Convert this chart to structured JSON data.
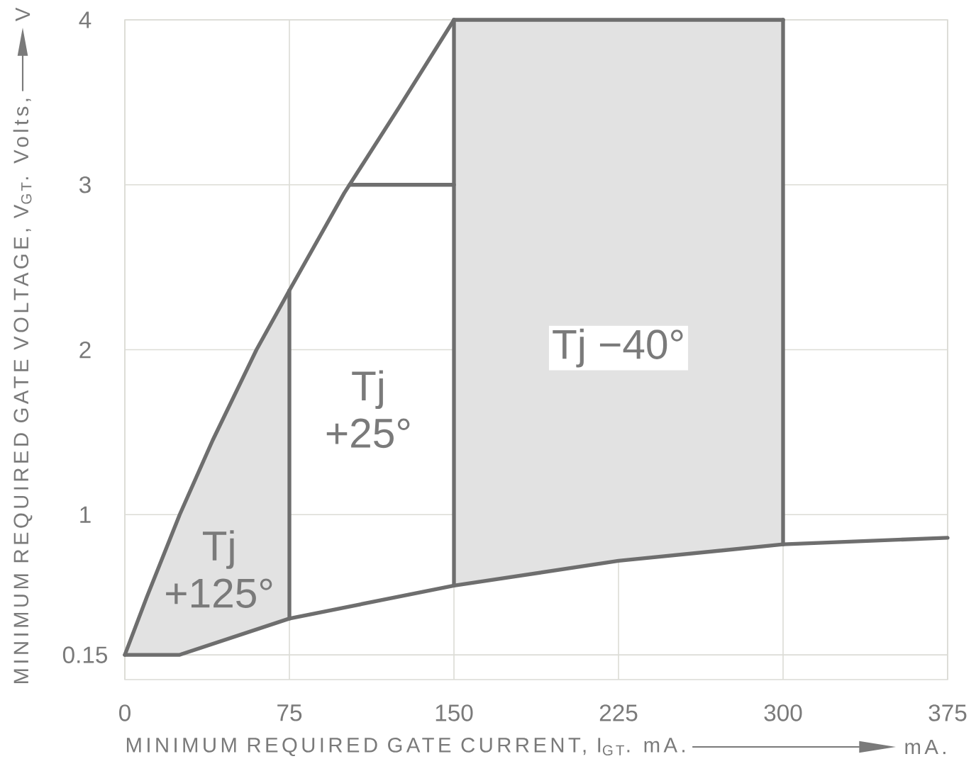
{
  "chart_data": {
    "type": "line",
    "xlabel": "MINIMUM REQUIRED GATE CURRENT, I$_{GT}$. mA.",
    "ylabel": "MINIMUM REQUIRED GATE VOLTAGE, V$_{GT}$. Volts,",
    "annotations": [
      "mA.",
      "V",
      "Tj +125°",
      "Tj +25°",
      "Tj −40°"
    ],
    "xlim": [
      0,
      375
    ],
    "xticks": [
      0,
      75,
      150,
      225,
      300,
      375
    ],
    "ylim": [
      0,
      4
    ],
    "yticks": [
      0.15,
      1,
      2,
      3,
      4
    ],
    "grid": true,
    "series": [
      {
        "color": "#6e6e6e",
        "x": [
          0,
          10,
          25,
          40,
          60,
          75,
          100,
          125,
          150
        ],
        "values": [
          0.15,
          0.5,
          1.0,
          1.45,
          2.0,
          2.36,
          2.95,
          3.47,
          4.0
        ],
        "lower": [
          0.15,
          0.15,
          0.15,
          0.22,
          0.3,
          0.37,
          null,
          null,
          null
        ],
        "upper": [
          0.15,
          0.5,
          1.0,
          1.45,
          2.0,
          2.36,
          null,
          null,
          null
        ]
      },
      {
        "color": "#6e6e6e",
        "x": [
          0,
          25,
          75,
          150,
          225,
          300,
          375
        ],
        "values": [
          0.15,
          0.15,
          0.37,
          0.57,
          0.72,
          0.82,
          0.86
        ]
      },
      {
        "color": "#6e6e6e",
        "x": [
          150,
          225,
          300
        ],
        "values": [
          4,
          4,
          4
        ],
        "lower": [
          0.57,
          0.72,
          0.82
        ],
        "upper": [
          4,
          4,
          4
        ]
      },
      {
        "color": "#6e6e6e",
        "x": [
          75,
          75
        ],
        "values": [
          0.37,
          2.36
        ]
      },
      {
        "color": "#6e6e6e",
        "x": [
          102.5,
          150
        ],
        "values": [
          3,
          3
        ]
      },
      {
        "color": "#6e6e6e",
        "x": [
          150,
          150
        ],
        "values": [
          0.57,
          4
        ]
      },
      {
        "color": "#6e6e6e",
        "x": [
          300,
          300
        ],
        "values": [
          0.82,
          4
        ]
      }
    ]
  }
}
